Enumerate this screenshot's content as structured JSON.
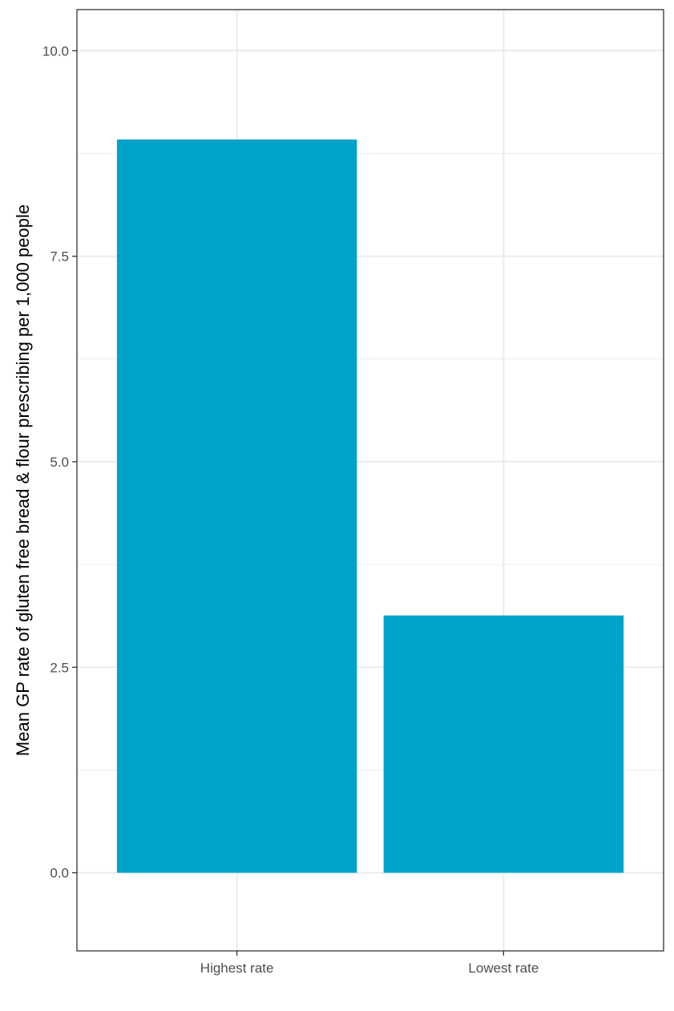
{
  "chart_data": {
    "type": "bar",
    "title": "",
    "xlabel": "",
    "ylabel": "Mean GP rate of gluten free bread & flour prescribing per 1,000 people",
    "categories": [
      "Highest rate",
      "Lowest rate"
    ],
    "values": [
      8.92,
      3.13
    ],
    "ylim": [
      -0.95,
      10.5
    ],
    "yticks": [
      0.0,
      2.5,
      5.0,
      7.5,
      10.0
    ],
    "ytick_labels": [
      "0.0",
      "2.5",
      "5.0",
      "7.5",
      "10.0"
    ],
    "grid": true,
    "legend": "none",
    "colors": {
      "bar": "#00A3C8",
      "grid": "#ebebeb",
      "border": "#333333",
      "tick_text": "#4d4d4d"
    }
  }
}
